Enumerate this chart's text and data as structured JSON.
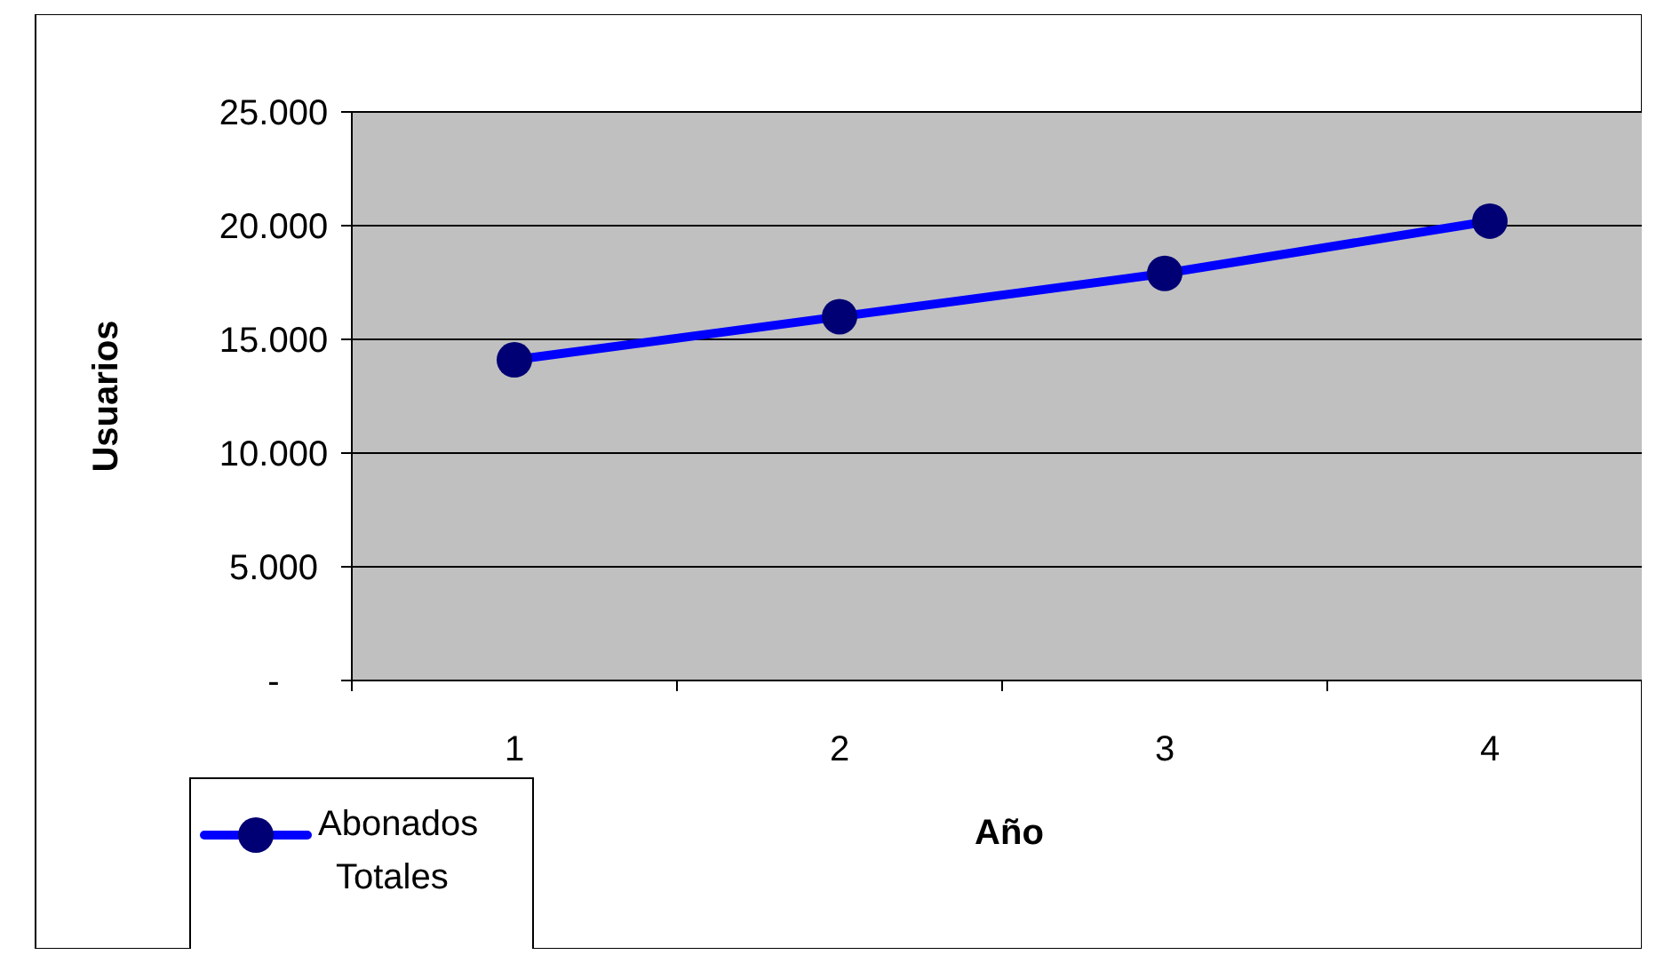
{
  "chart_data": {
    "type": "line",
    "xlabel": "Año",
    "ylabel": "Usuarios",
    "categories": [
      "1",
      "2",
      "3",
      "4"
    ],
    "series": [
      {
        "name": "Abonados Totales",
        "color": "#0000ff",
        "values": [
          14100,
          16000,
          17900,
          20200
        ]
      }
    ],
    "ylim": [
      0,
      25000
    ],
    "yticks": [
      {
        "value": 0,
        "label": "-"
      },
      {
        "value": 5000,
        "label": "5.000"
      },
      {
        "value": 10000,
        "label": "10.000"
      },
      {
        "value": 15000,
        "label": "15.000"
      },
      {
        "value": 20000,
        "label": "20.000"
      },
      {
        "value": 25000,
        "label": "25.000"
      }
    ],
    "grid": "y",
    "legend": "bottom left",
    "marker": "circle",
    "line_style": "solid"
  }
}
